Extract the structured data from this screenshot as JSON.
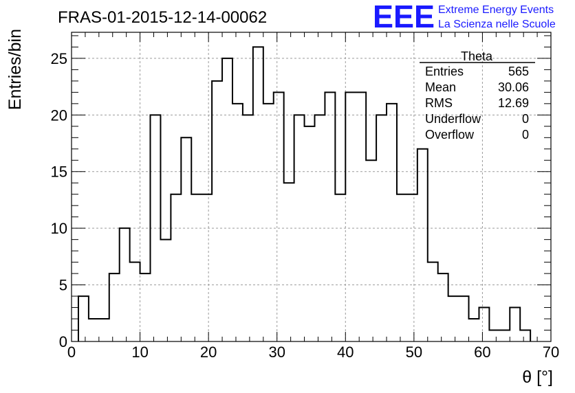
{
  "chart_data": {
    "type": "bar",
    "title": "FRAS-01-2015-12-14-00062",
    "xlabel": "θ [°]",
    "ylabel": "Entries/bin",
    "xlim": [
      0,
      70
    ],
    "ylim": [
      0,
      27.3
    ],
    "grid": true,
    "bin_width": 1.5,
    "x_start": 1,
    "values": [
      4,
      2,
      2,
      6,
      10,
      7,
      6,
      20,
      9,
      13,
      18,
      13,
      13,
      23,
      25,
      21,
      20,
      26,
      21,
      22,
      14,
      20,
      19,
      20,
      22,
      13,
      22,
      22,
      16,
      20,
      21,
      13,
      13,
      17,
      7,
      6,
      4,
      4,
      2,
      3,
      1,
      1,
      3,
      1
    ],
    "x_ticks": [
      0,
      10,
      20,
      30,
      40,
      50,
      60,
      70
    ],
    "y_ticks": [
      0,
      5,
      10,
      15,
      20,
      25
    ],
    "stats_box": {
      "title": "Theta",
      "rows": [
        {
          "label": "Entries",
          "value": "565"
        },
        {
          "label": "Mean",
          "value": "30.06"
        },
        {
          "label": "RMS",
          "value": "12.69"
        },
        {
          "label": "Underflow",
          "value": "0"
        },
        {
          "label": "Overflow",
          "value": "0"
        }
      ]
    }
  },
  "logo": {
    "mark": "EEE",
    "line1": "Extreme Energy Events",
    "line2": "La Scienza nelle Scuole",
    "color": "#1a1aff"
  }
}
